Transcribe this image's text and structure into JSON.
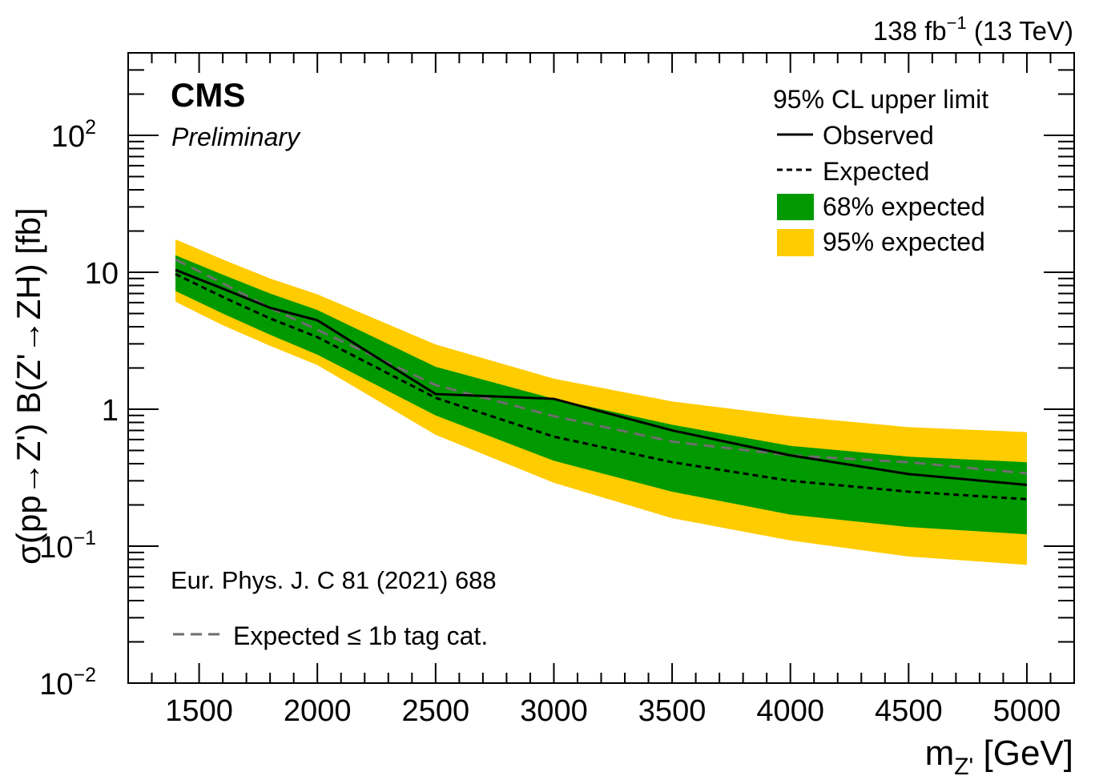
{
  "chart_data": {
    "type": "area",
    "lumi_label": "138 fb",
    "lumi_exp": "−1",
    "energy_label": " (13 TeV)",
    "experiment": "CMS",
    "status": "Preliminary",
    "reference": "Eur. Phys. J. C 81 (2021) 688",
    "xlabel": "m",
    "xlabel_sub": "Z'",
    "xlabel_unit": " [GeV]",
    "ylabel": "σ(pp→Z') B(Z'→ZH) [fb]",
    "xlim": [
      1200,
      5200
    ],
    "ylim": [
      0.01,
      400
    ],
    "yscale": "log",
    "x_ticks": [
      "1500",
      "2000",
      "2500",
      "3000",
      "3500",
      "4000",
      "4500",
      "5000"
    ],
    "y_ticks": [
      {
        "base": "10",
        "exp": "−2",
        "value": 0.01
      },
      {
        "base": "10",
        "exp": "−1",
        "value": 0.1
      },
      {
        "base": "1",
        "exp": "",
        "value": 1
      },
      {
        "base": "10",
        "exp": "",
        "value": 10
      },
      {
        "base": "10",
        "exp": "2",
        "value": 100
      }
    ],
    "legend_title": "95% CL upper limit",
    "legend_position": "top-right",
    "x": [
      1400,
      1600,
      1800,
      2000,
      2500,
      3000,
      3500,
      4000,
      4500,
      5000
    ],
    "series": [
      {
        "name": "Observed",
        "style": "solid",
        "color": "#000000",
        "values": [
          10.4,
          7.6,
          5.5,
          4.46,
          1.29,
          1.19,
          0.7,
          0.46,
          0.336,
          0.28
        ]
      },
      {
        "name": "Expected",
        "style": "dotted",
        "color": "#000000",
        "values": [
          9.7,
          6.6,
          4.6,
          3.36,
          1.21,
          0.63,
          0.41,
          0.3,
          0.25,
          0.22
        ]
      },
      {
        "name": "Expected ≤ 1b tag cat.",
        "style": "dashed",
        "color": "#6e6e6e",
        "values": [
          12.4,
          8.3,
          5.5,
          3.8,
          1.5,
          0.89,
          0.58,
          0.46,
          0.41,
          0.34
        ]
      }
    ],
    "bands": [
      {
        "name": "95% expected",
        "color": "#ffcc00",
        "upper": [
          17.4,
          12.4,
          9.0,
          6.9,
          2.97,
          1.67,
          1.14,
          0.89,
          0.74,
          0.68
        ],
        "lower": [
          6.1,
          4.1,
          2.9,
          2.1,
          0.65,
          0.29,
          0.16,
          0.11,
          0.084,
          0.073
        ]
      },
      {
        "name": "68% expected",
        "color": "#009900",
        "upper": [
          13.3,
          9.6,
          7.0,
          5.3,
          2.04,
          1.19,
          0.77,
          0.54,
          0.45,
          0.41
        ],
        "lower": [
          7.3,
          5.0,
          3.5,
          2.5,
          0.9,
          0.42,
          0.25,
          0.17,
          0.138,
          0.122
        ]
      }
    ]
  }
}
